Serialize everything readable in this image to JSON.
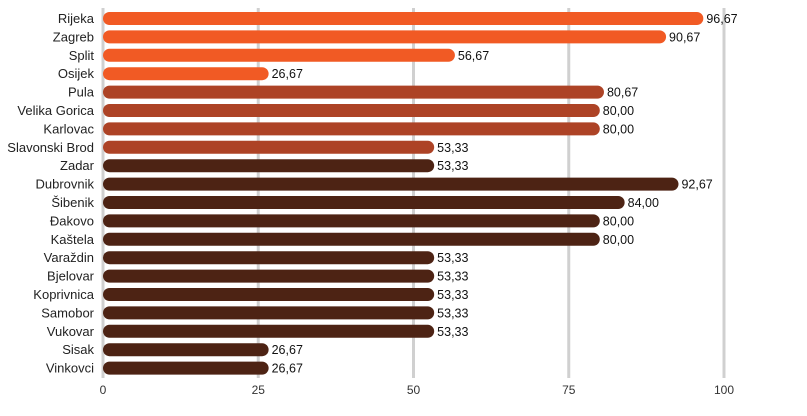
{
  "chart_data": {
    "type": "bar",
    "orientation": "horizontal",
    "title": "",
    "xlabel": "",
    "ylabel": "",
    "xlim": [
      0,
      100
    ],
    "x_ticks": [
      0,
      25,
      50,
      75,
      100
    ],
    "grid": true,
    "categories": [
      "Rijeka",
      "Zagreb",
      "Split",
      "Osijek",
      "Pula",
      "Velika Gorica",
      "Karlovac",
      "Slavonski Brod",
      "Zadar",
      "Dubrovnik",
      "Šibenik",
      "Đakovo",
      "Kaštela",
      "Varaždin",
      "Bjelovar",
      "Koprivnica",
      "Samobor",
      "Vukovar",
      "Sisak",
      "Vinkovci"
    ],
    "values": [
      96.67,
      90.67,
      56.67,
      26.67,
      80.67,
      80.0,
      80.0,
      53.33,
      53.33,
      92.67,
      84.0,
      80.0,
      80.0,
      53.33,
      53.33,
      53.33,
      53.33,
      53.33,
      26.67,
      26.67
    ],
    "value_labels": [
      "96,67",
      "90,67",
      "56,67",
      "26,67",
      "80,67",
      "80,00",
      "80,00",
      "53,33",
      "53,33",
      "92,67",
      "84,00",
      "80,00",
      "80,00",
      "53,33",
      "53,33",
      "53,33",
      "53,33",
      "53,33",
      "26,67",
      "26,67"
    ],
    "bar_groups": [
      "large",
      "large",
      "large",
      "large",
      "medium",
      "medium",
      "medium",
      "medium",
      "small",
      "small",
      "small",
      "small",
      "small",
      "small",
      "small",
      "small",
      "small",
      "small",
      "small",
      "small"
    ],
    "colors": {
      "large": "#f15a24",
      "medium": "#ad4326",
      "small": "#4d2314",
      "grid": "#d0d0d0"
    }
  }
}
